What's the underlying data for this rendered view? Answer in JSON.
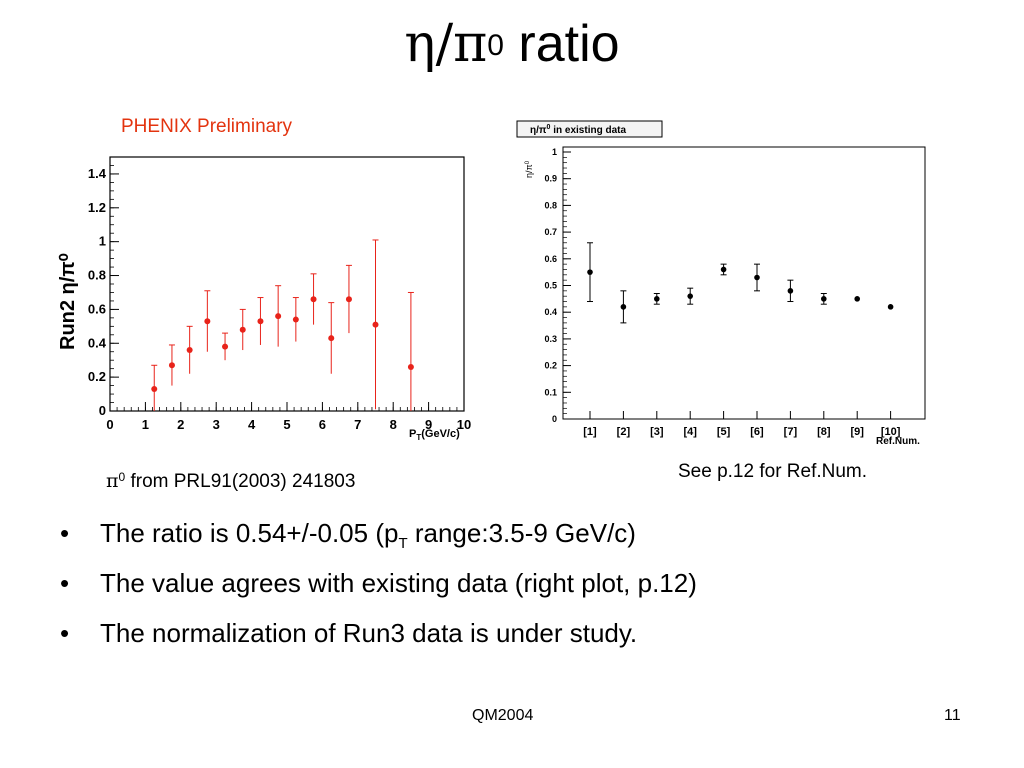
{
  "slide": {
    "title_eta": "η",
    "title_slash": "/",
    "title_pi": "π",
    "title_sup": "0",
    "title_rest": " ratio",
    "phenix_label": "PHENIX Preliminary",
    "caption_left_pi": "π",
    "caption_left_sup": "0",
    "caption_left_rest": " from  PRL91(2003) 241803",
    "caption_right": "See p.12 for Ref.Num.",
    "bullet_symbol": "•",
    "bullets": [
      {
        "text_a": "The ratio is 0.54+/-0.05 (p",
        "sub": "T",
        "text_b": " range:3.5-9 GeV/c)"
      },
      {
        "text_a": "The value agrees with existing data (right plot, p.12)",
        "sub": "",
        "text_b": ""
      },
      {
        "text_a": "The normalization of Run3 data is under study.",
        "sub": "",
        "text_b": ""
      }
    ],
    "footer_center": "QM2004",
    "footer_right": "11"
  },
  "chart_data": [
    {
      "type": "scatter",
      "ylabel": "Run2 η/π⁰",
      "xlabel": "PT(GeV/c)",
      "xlabel_main": "P",
      "xlabel_sub": "T",
      "xlabel_rest": "(GeV/c)",
      "xlim": [
        0,
        10
      ],
      "ylim": [
        0,
        1.5
      ],
      "x_ticks": [
        "0",
        "1",
        "2",
        "3",
        "4",
        "5",
        "6",
        "7",
        "8",
        "9",
        "10"
      ],
      "y_ticks": [
        "0",
        "0.2",
        "0.4",
        "0.6",
        "0.8",
        "1",
        "1.2",
        "1.4"
      ],
      "marker_color": "#e8231a",
      "points": [
        {
          "x": 1.25,
          "y": 0.13,
          "err": 0.14
        },
        {
          "x": 1.75,
          "y": 0.27,
          "err": 0.12
        },
        {
          "x": 2.25,
          "y": 0.36,
          "err": 0.14
        },
        {
          "x": 2.75,
          "y": 0.53,
          "err": 0.18
        },
        {
          "x": 3.25,
          "y": 0.38,
          "err": 0.08
        },
        {
          "x": 3.75,
          "y": 0.48,
          "err": 0.12
        },
        {
          "x": 4.25,
          "y": 0.53,
          "err": 0.14
        },
        {
          "x": 4.75,
          "y": 0.56,
          "err": 0.18
        },
        {
          "x": 5.25,
          "y": 0.54,
          "err": 0.13
        },
        {
          "x": 5.75,
          "y": 0.66,
          "err": 0.15
        },
        {
          "x": 6.25,
          "y": 0.43,
          "err": 0.21
        },
        {
          "x": 6.75,
          "y": 0.66,
          "err": 0.2
        },
        {
          "x": 7.5,
          "y": 0.51,
          "err": 0.5
        },
        {
          "x": 8.5,
          "y": 0.26,
          "err": 0.44
        }
      ]
    },
    {
      "type": "scatter",
      "title": "η/π⁰ in existing data",
      "title_eta": "η",
      "title_pi": "π",
      "title_sup": "0",
      "title_rest": " in existing data",
      "ylabel": "η/π⁰",
      "ylabel_eta": "η",
      "ylabel_pi": "π",
      "ylabel_sup": "0",
      "xlabel": "Ref.Num.",
      "categories": [
        "[1]",
        "[2]",
        "[3]",
        "[4]",
        "[5]",
        "[6]",
        "[7]",
        "[8]",
        "[9]",
        "[10]"
      ],
      "ylim": [
        0,
        1
      ],
      "y_ticks": [
        "0",
        "0.1",
        "0.2",
        "0.3",
        "0.4",
        "0.5",
        "0.6",
        "0.7",
        "0.8",
        "0.9",
        "1"
      ],
      "marker_color": "#000000",
      "points": [
        {
          "cat": "[1]",
          "y": 0.55,
          "err": 0.11
        },
        {
          "cat": "[2]",
          "y": 0.42,
          "err": 0.06
        },
        {
          "cat": "[3]",
          "y": 0.45,
          "err": 0.02
        },
        {
          "cat": "[4]",
          "y": 0.46,
          "err": 0.03
        },
        {
          "cat": "[5]",
          "y": 0.56,
          "err": 0.02
        },
        {
          "cat": "[6]",
          "y": 0.53,
          "err": 0.05
        },
        {
          "cat": "[7]",
          "y": 0.48,
          "err": 0.04
        },
        {
          "cat": "[8]",
          "y": 0.45,
          "err": 0.02
        },
        {
          "cat": "[9]",
          "y": 0.45,
          "err": 0
        },
        {
          "cat": "[10]",
          "y": 0.42,
          "err": 0
        }
      ]
    }
  ]
}
